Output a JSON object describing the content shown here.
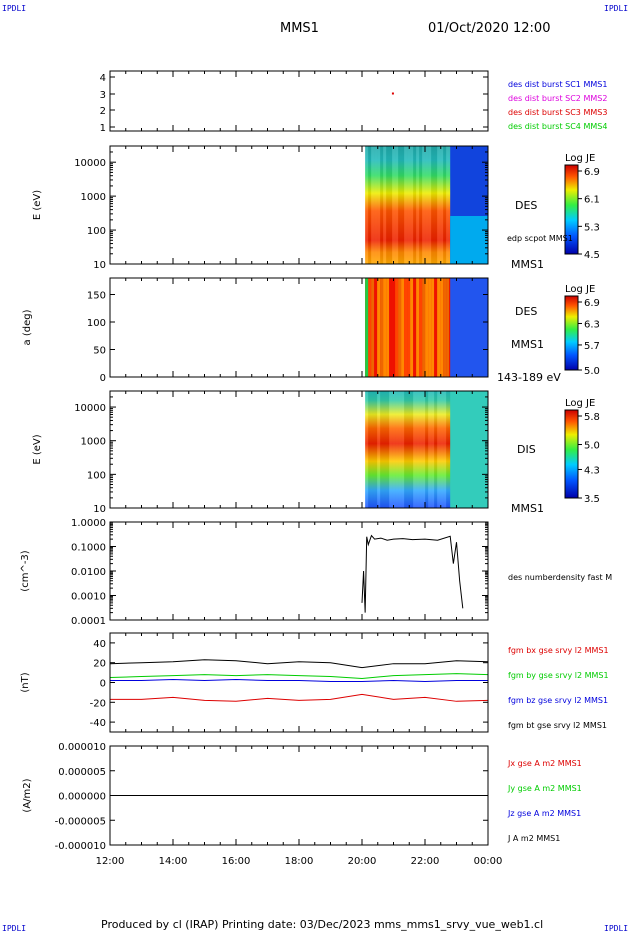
{
  "corner_tag": "IPDLI",
  "header": {
    "spacecraft": "MMS1",
    "datetime": "01/Oct/2020 12:00"
  },
  "footer": {
    "text": "Produced by cl (IRAP)   Printing date: 03/Dec/2023   mms_mms1_srvy_vue_web1.cl"
  },
  "colors": {
    "sc1": "#0000dd",
    "sc2": "#dd00dd",
    "sc3": "#dd0000",
    "sc4": "#00cc00"
  },
  "chart_data": [
    {
      "type": "scatter",
      "panel": "spacecraft-availability",
      "ylim": [
        0.5,
        4.5
      ],
      "yticks": [
        "1",
        "2",
        "3",
        "4"
      ],
      "legend": [
        "des dist burst SC1 MMS1",
        "des dist burst SC2 MMS2",
        "des dist burst SC3 MMS3",
        "des dist burst SC4 MMS4"
      ],
      "points": [
        {
          "x": 20.95,
          "y": 3
        }
      ]
    },
    {
      "type": "heatmap",
      "panel": "des-energy-spectrogram",
      "ylabel": "E (eV)",
      "yscale": "log",
      "ylim": [
        10,
        30000
      ],
      "yticks": [
        "10",
        "100",
        "1000",
        "10000"
      ],
      "right_labels": [
        "DES",
        "edp scpot MMS1",
        "MMS1"
      ],
      "colorbar": {
        "title": "Log JE",
        "ticks": [
          "6.9",
          "6.1",
          "5.3",
          "4.5"
        ],
        "range": [
          4.5,
          6.9
        ]
      },
      "data_start_hour": 20.1,
      "data_end_hour": 24.0
    },
    {
      "type": "heatmap",
      "panel": "des-pitch-angle",
      "ylabel": "a (deg)",
      "ylim": [
        0,
        180
      ],
      "yticks": [
        "0",
        "50",
        "100",
        "150"
      ],
      "right_labels": [
        "DES",
        "MMS1",
        "143-189 eV"
      ],
      "colorbar": {
        "title": "Log JE",
        "ticks": [
          "6.9",
          "6.3",
          "5.7",
          "5.0"
        ],
        "range": [
          5.0,
          6.9
        ]
      },
      "data_start_hour": 20.1,
      "data_end_hour": 24.0
    },
    {
      "type": "heatmap",
      "panel": "dis-energy-spectrogram",
      "ylabel": "E (eV)",
      "yscale": "log",
      "ylim": [
        10,
        30000
      ],
      "yticks": [
        "10",
        "100",
        "1000",
        "10000"
      ],
      "right_labels": [
        "DIS",
        "MMS1"
      ],
      "colorbar": {
        "title": "Log JE",
        "ticks": [
          "5.8",
          "5.0",
          "4.3",
          "3.5"
        ],
        "range": [
          3.5,
          5.8
        ]
      },
      "data_start_hour": 20.1,
      "data_end_hour": 24.0
    },
    {
      "type": "line",
      "panel": "density",
      "ylabel": "(cm^-3)",
      "yscale": "log",
      "ylim": [
        0.0001,
        1.0
      ],
      "yticks": [
        "0.0001",
        "0.0010",
        "0.0100",
        "0.1000",
        "1.0000"
      ],
      "legend": [
        "des numberdensity fast M"
      ],
      "series": [
        {
          "x": [
            20.0,
            20.05,
            20.1,
            20.15,
            20.2,
            20.3,
            20.4,
            20.6,
            20.8,
            21.0,
            21.3,
            21.6,
            22.0,
            22.4,
            22.8,
            22.9,
            23.0,
            23.1,
            23.2
          ],
          "y": [
            0.0005,
            0.01,
            0.0002,
            0.25,
            0.12,
            0.28,
            0.2,
            0.22,
            0.18,
            0.2,
            0.21,
            0.19,
            0.2,
            0.18,
            0.26,
            0.02,
            0.15,
            0.004,
            0.0003
          ]
        }
      ]
    },
    {
      "type": "line",
      "panel": "magnetic-field",
      "ylabel": "(nT)",
      "ylim": [
        -50,
        50
      ],
      "yticks": [
        "-40",
        "-20",
        "0",
        "20",
        "40"
      ],
      "legend": [
        "fgm bx gse srvy l2 MMS1",
        "fgm by gse srvy l2 MMS1",
        "fgm bz gse srvy l2 MMS1",
        "fgm bt gse srvy l2 MMS1"
      ],
      "legend_colors": [
        "#dd0000",
        "#00cc00",
        "#0000dd",
        "#000000"
      ],
      "x": [
        12,
        13,
        14,
        15,
        16,
        17,
        18,
        19,
        20,
        21,
        22,
        23,
        24
      ],
      "series": [
        {
          "values": [
            -17,
            -17,
            -15,
            -18,
            -19,
            -16,
            -18,
            -17,
            -12,
            -17,
            -15,
            -19,
            -18
          ]
        },
        {
          "values": [
            5,
            6,
            7,
            8,
            7,
            8,
            7,
            6,
            4,
            7,
            8,
            9,
            8
          ]
        },
        {
          "values": [
            2,
            2,
            3,
            2,
            3,
            2,
            2,
            1,
            1,
            2,
            1,
            2,
            2
          ]
        },
        {
          "values": [
            19,
            20,
            21,
            23,
            22,
            19,
            21,
            20,
            15,
            19,
            19,
            22,
            21
          ]
        }
      ]
    },
    {
      "type": "line",
      "panel": "current-density",
      "ylabel": "(A/m2)",
      "ylim": [
        -1e-05,
        1e-05
      ],
      "yticks": [
        "-0.000010",
        "-0.000005",
        "0.000000",
        "0.000005",
        "0.000010"
      ],
      "legend": [
        "Jx gse A m2 MMS1",
        "Jy gse A m2 MMS1",
        "Jz gse A m2 MMS1",
        "J A m2 MMS1"
      ],
      "legend_colors": [
        "#dd0000",
        "#00cc00",
        "#0000dd",
        "#000000"
      ],
      "series": [
        {
          "x": [
            12,
            24
          ],
          "y": [
            0,
            0
          ]
        }
      ]
    }
  ],
  "xaxis": {
    "ticks": [
      "12:00",
      "14:00",
      "16:00",
      "18:00",
      "20:00",
      "22:00",
      "00:00"
    ],
    "range": [
      12,
      24
    ]
  }
}
